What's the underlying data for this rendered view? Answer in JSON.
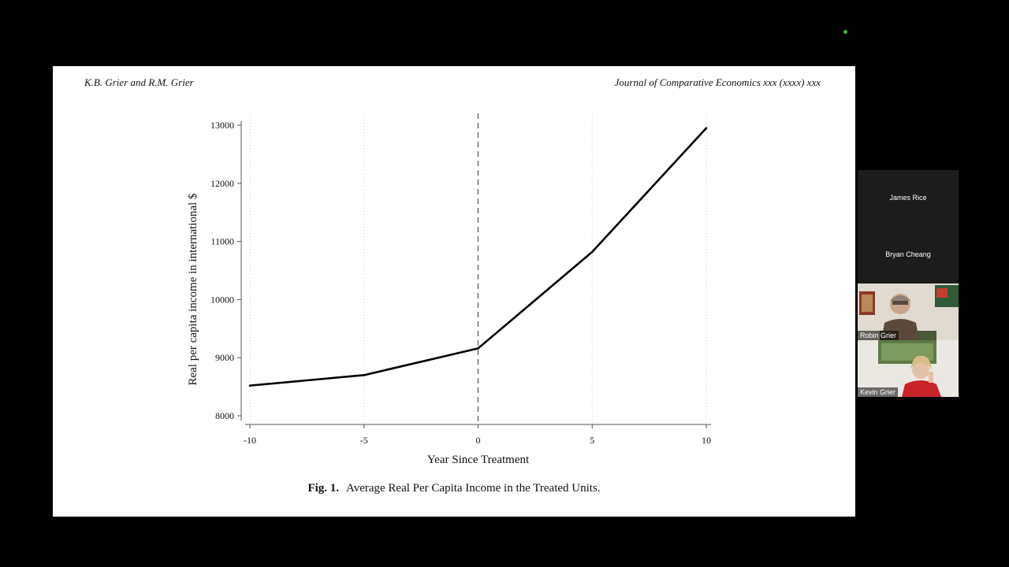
{
  "slide": {
    "header_left": "K.B. Grier and R.M. Grier",
    "header_right": "Journal of Comparative Economics xxx (xxxx) xxx",
    "caption_label": "Fig. 1.",
    "caption_text": "Average Real Per Capita Income in the Treated Units."
  },
  "chart_data": {
    "type": "line",
    "xlabel": "Year Since Treatment",
    "ylabel": "Real per capita income in international $",
    "x_ticks": [
      -10,
      -5,
      0,
      5,
      10
    ],
    "y_ticks": [
      8000,
      9000,
      10000,
      11000,
      12000,
      13000
    ],
    "xlim": [
      -10,
      10
    ],
    "ylim": [
      8000,
      13000
    ],
    "x": [
      -10,
      -5,
      0,
      5,
      10
    ],
    "y": [
      8520,
      8700,
      9160,
      10820,
      12950
    ],
    "treatment_line_x": 0,
    "vertical_gridlines": true,
    "line_color": "#000000"
  },
  "participants": [
    {
      "name": "James Rice",
      "video": false
    },
    {
      "name": "Bryan Cheang",
      "video": false
    },
    {
      "name": "Robin Grier",
      "video": true
    },
    {
      "name": "Kevin Grier",
      "video": true
    }
  ],
  "colors": {
    "background": "#000000",
    "slide": "#ffffff",
    "status_dot": "#4caf50"
  }
}
